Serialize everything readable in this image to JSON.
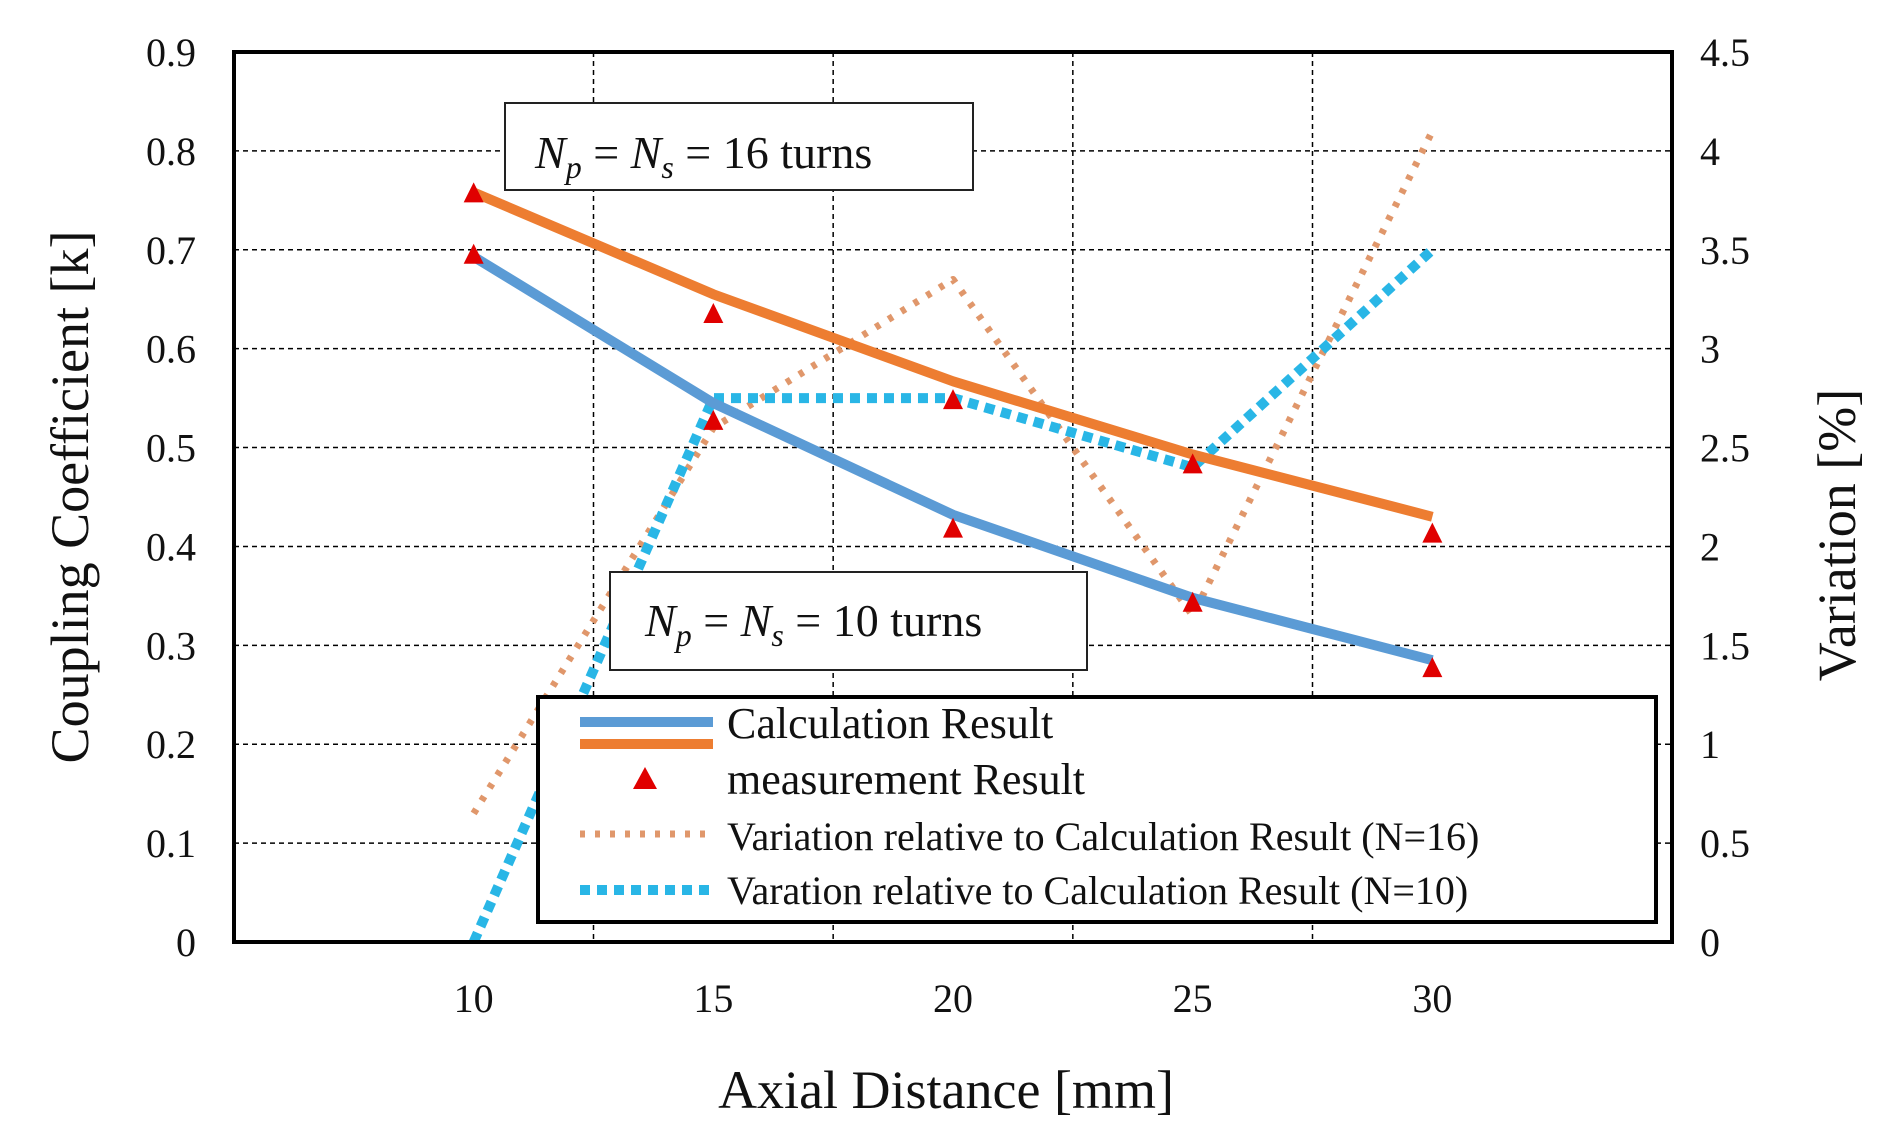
{
  "chart_data": {
    "type": "line",
    "title": "",
    "xlabel": "Axial Distance [mm]",
    "ylabel": "Coupling Coefficient [k]",
    "y2label": "Variation [%]",
    "x": [
      10,
      15,
      20,
      25,
      30
    ],
    "xlim": [
      5,
      35
    ],
    "xticks": [
      10,
      15,
      20,
      25,
      30
    ],
    "ylim": [
      0,
      0.9
    ],
    "yticks": [
      "0",
      "0.1",
      "0.2",
      "0.3",
      "0.4",
      "0.5",
      "0.6",
      "0.7",
      "0.8",
      "0.9"
    ],
    "y2lim": [
      0,
      4.5
    ],
    "y2ticks": [
      "0",
      "0.5",
      "1",
      "1.5",
      "2",
      "2.5",
      "3",
      "3.5",
      "4",
      "4.5"
    ],
    "grid": true,
    "series": [
      {
        "name": "Calculation Result (N=10)",
        "axis": "left",
        "style": "solid",
        "color": "#5b9bd5",
        "values": [
          0.693,
          0.545,
          0.432,
          0.348,
          0.285
        ]
      },
      {
        "name": "Calculation Result (N=16)",
        "axis": "left",
        "style": "solid",
        "color": "#ed7d31",
        "values": [
          0.758,
          0.655,
          0.567,
          0.493,
          0.43
        ]
      },
      {
        "name": "measurement Result (N=10)",
        "axis": "left",
        "style": "marker",
        "color": "#e00000",
        "values": [
          0.695,
          0.527,
          0.418,
          0.343,
          0.277
        ]
      },
      {
        "name": "measurement Result (N=16)",
        "axis": "left",
        "style": "marker",
        "color": "#e00000",
        "values": [
          0.757,
          0.635,
          0.548,
          0.483,
          0.413
        ]
      },
      {
        "name": "Variation relative to Calculation Result (N=16)",
        "axis": "right",
        "style": "dotted",
        "color": "#ed7d31",
        "values": [
          0.65,
          2.6,
          3.35,
          1.65,
          4.1
        ]
      },
      {
        "name": "Varation relative to Calculation Result (N=10)",
        "axis": "right",
        "style": "dotted",
        "color": "#29b6e6",
        "values": [
          0.0,
          2.75,
          2.75,
          2.4,
          3.5
        ]
      }
    ],
    "legend": {
      "position": "bottom-right",
      "entries": [
        "Calculation Result",
        "measurement Result",
        "Variation relative to Calculation Result (N=16)",
        "Varation relative to Calculation Result (N=10)"
      ]
    },
    "annotations": [
      {
        "prefix_n1": "N",
        "sub1": "p",
        "eq": " = ",
        "prefix_n2": "N",
        "sub2": "s",
        "suffix": " = 16 turns"
      },
      {
        "prefix_n1": "N",
        "sub1": "p",
        "eq": " = ",
        "prefix_n2": "N",
        "sub2": "s",
        "suffix": " = 10 turns"
      }
    ]
  }
}
